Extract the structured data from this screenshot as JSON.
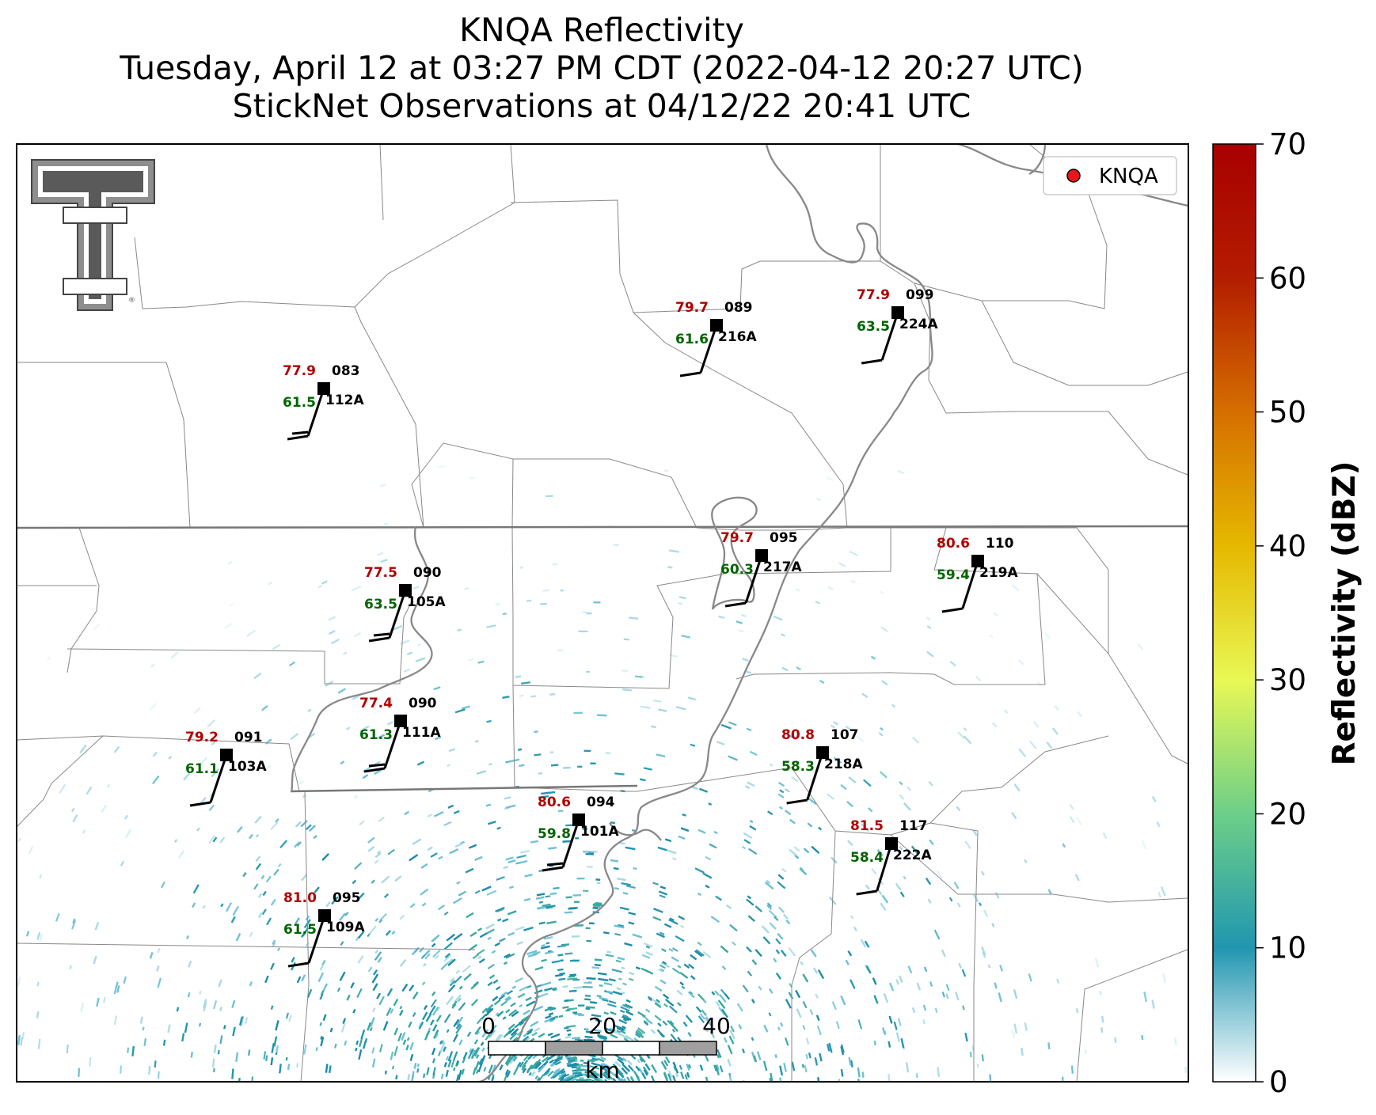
{
  "title": {
    "line1": "KNQA Reflectivity",
    "line2": "Tuesday, April 12 at 03:27 PM CDT (2022-04-12 20:27 UTC)",
    "line3": "StickNet Observations at 04/12/22 20:41 UTC"
  },
  "legend": {
    "label": "KNQA",
    "marker_color": "#e8151b"
  },
  "colorbar": {
    "label": "Reflectivity (dBZ)",
    "ticks": [
      "0",
      "10",
      "20",
      "30",
      "40",
      "50",
      "60",
      "70"
    ],
    "min": 0,
    "max": 70,
    "colors": [
      "#ffffff",
      "#2196b0",
      "#6ccf88",
      "#e8f855",
      "#e5b800",
      "#d56f00",
      "#b31d00",
      "#a80000"
    ]
  },
  "scale_bar": {
    "labels": [
      "0",
      "20",
      "40"
    ],
    "unit": "km"
  },
  "logo": {
    "name": "Texas Tech Double T"
  },
  "stations": [
    {
      "id": "112A",
      "temp": "77.9",
      "dew": "61.5",
      "dir": "083"
    },
    {
      "id": "216A",
      "temp": "79.7",
      "dew": "61.6",
      "dir": "089"
    },
    {
      "id": "224A",
      "temp": "77.9",
      "dew": "63.5",
      "dir": "099"
    },
    {
      "id": "105A",
      "temp": "77.5",
      "dew": "63.5",
      "dir": "090"
    },
    {
      "id": "217A",
      "temp": "79.7",
      "dew": "60.3",
      "dir": "095"
    },
    {
      "id": "219A",
      "temp": "80.6",
      "dew": "59.4",
      "dir": "110"
    },
    {
      "id": "111A",
      "temp": "77.4",
      "dew": "61.3",
      "dir": "090"
    },
    {
      "id": "103A",
      "temp": "79.2",
      "dew": "61.1",
      "dir": "091"
    },
    {
      "id": "218A",
      "temp": "80.8",
      "dew": "58.3",
      "dir": "107"
    },
    {
      "id": "101A",
      "temp": "80.6",
      "dew": "59.8",
      "dir": "094"
    },
    {
      "id": "222A",
      "temp": "81.5",
      "dew": "58.4",
      "dir": "117"
    },
    {
      "id": "109A",
      "temp": "81.0",
      "dew": "61.5",
      "dir": "095"
    }
  ],
  "colors": {
    "temp": "#b00000",
    "dew": "#006400",
    "barb": "#000000",
    "echo": "#2196b0"
  }
}
